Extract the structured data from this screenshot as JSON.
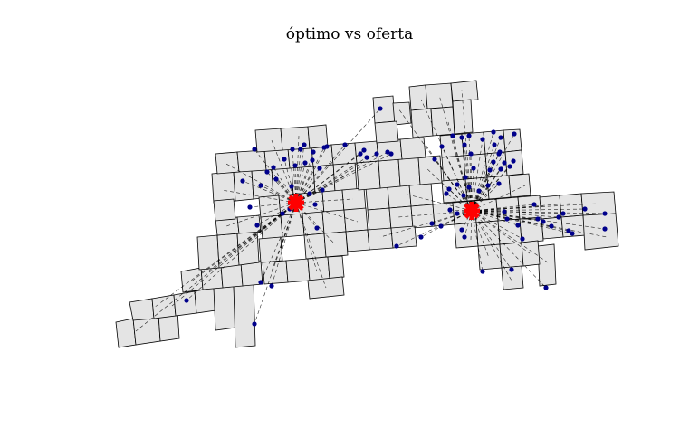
{
  "title": "óptimo vs oferta",
  "colors": {
    "block_fill": "#e4e4e4",
    "block_stroke": "#000000",
    "point": "#00008b",
    "optimum": "#ff0000",
    "background": "#ffffff"
  },
  "legend": null
}
